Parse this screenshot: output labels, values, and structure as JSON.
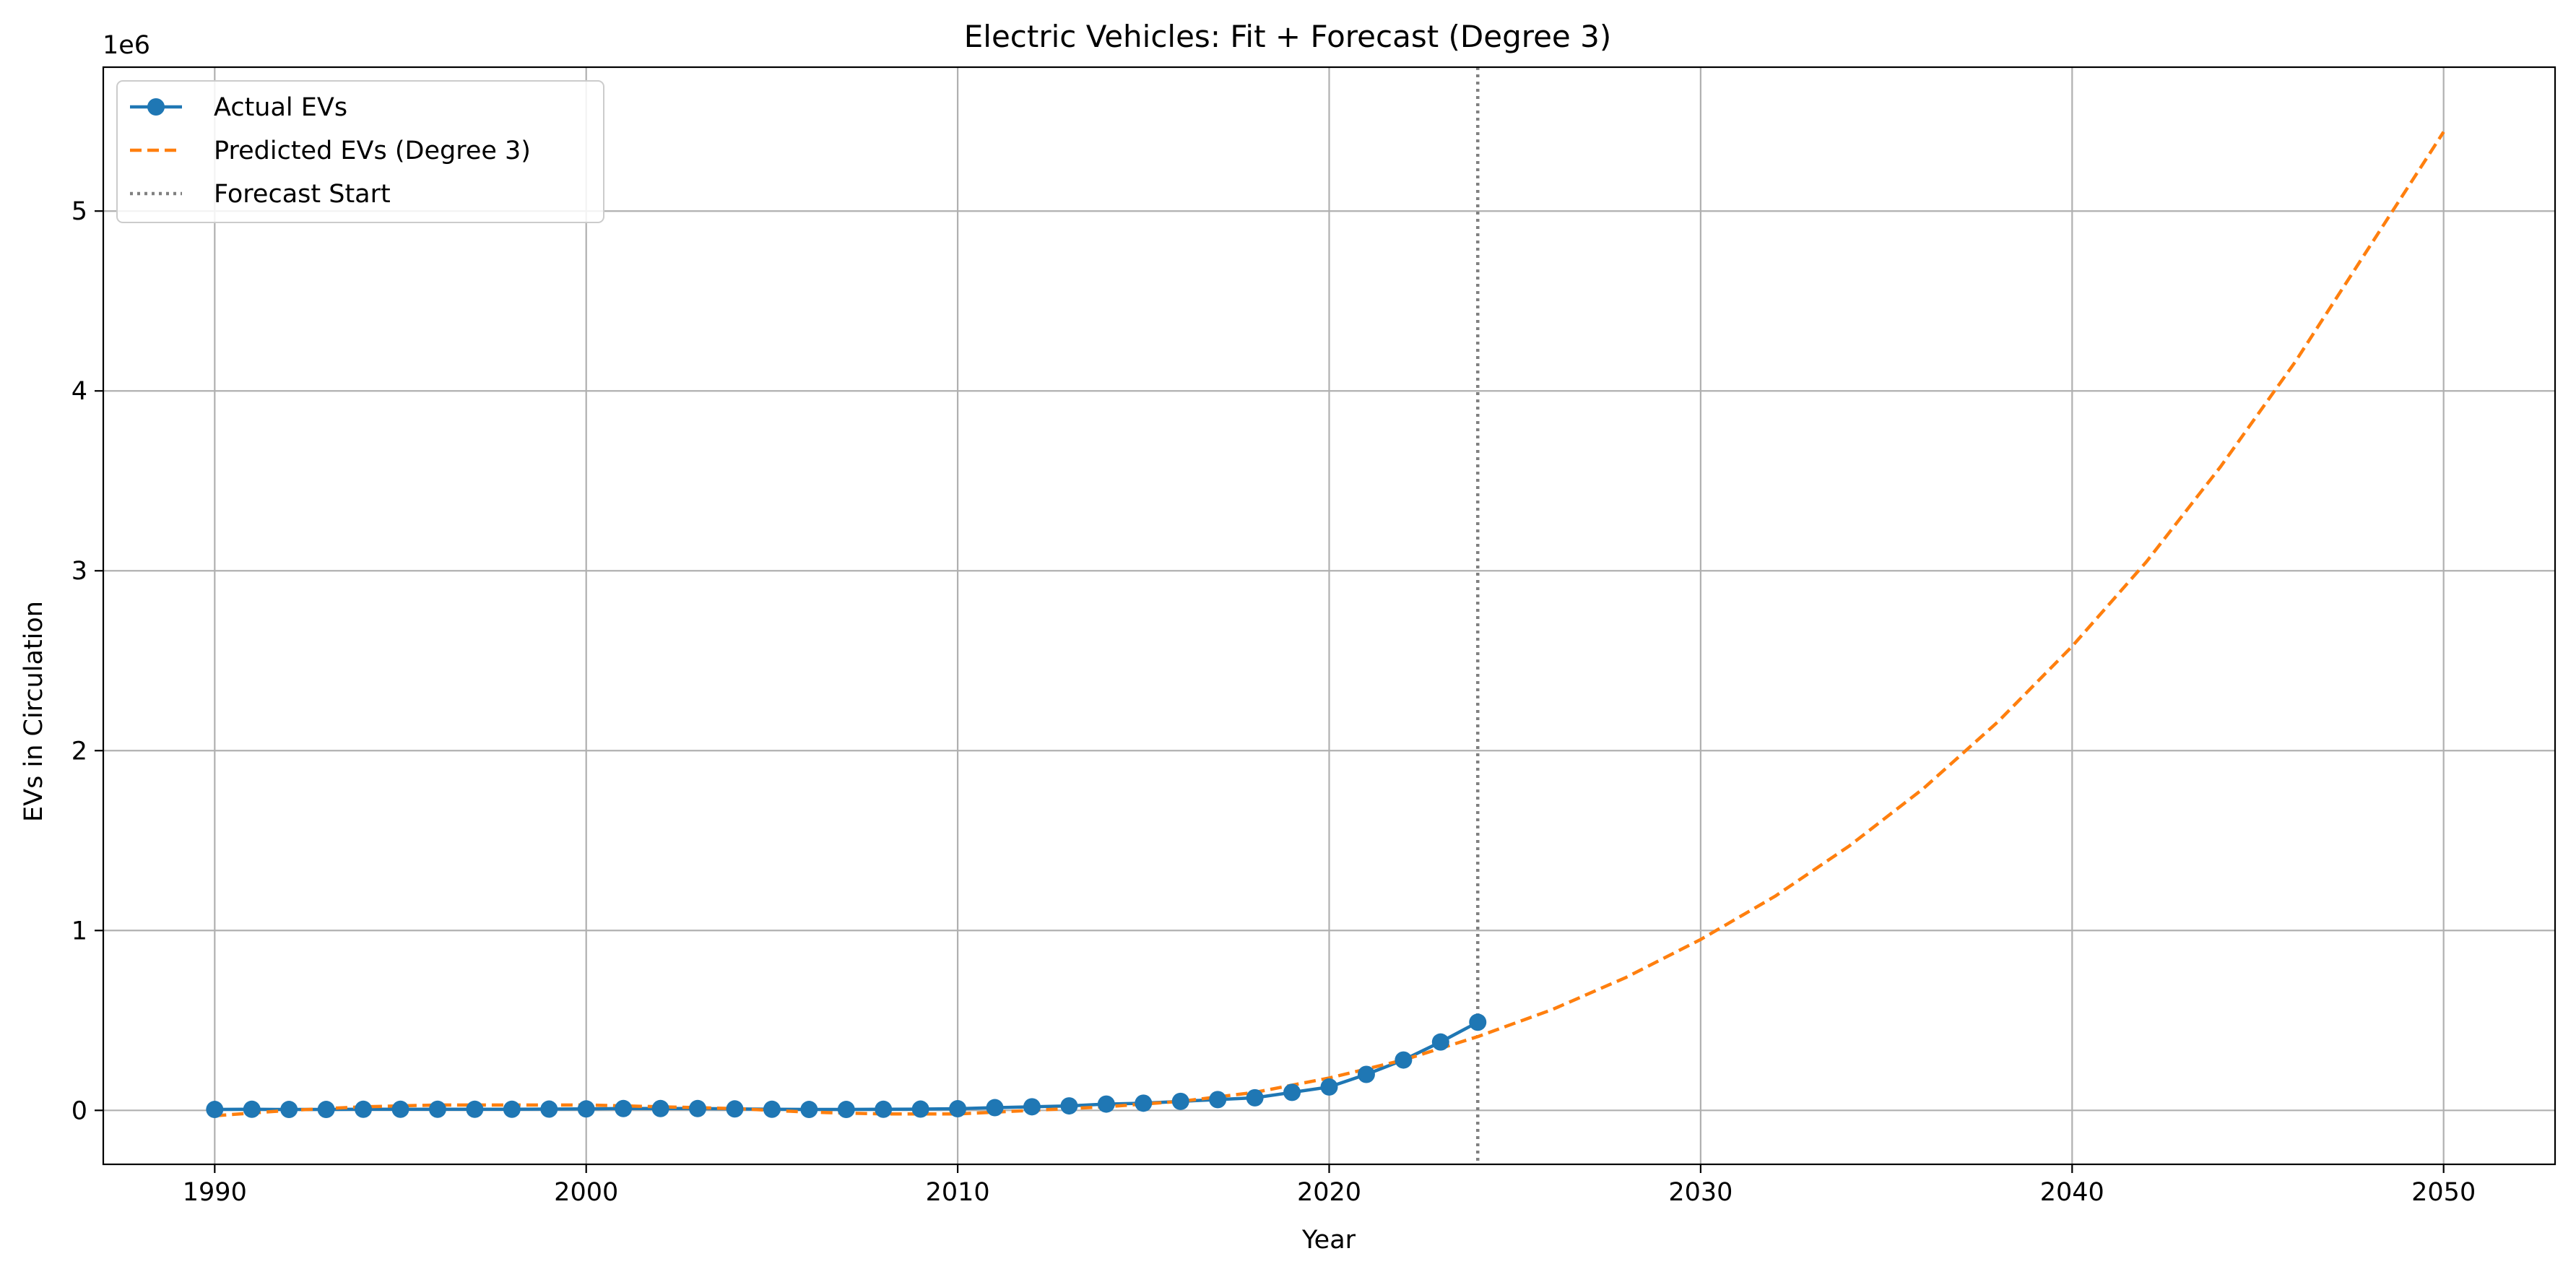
{
  "chart_data": {
    "type": "line",
    "title": "Electric Vehicles: Fit + Forecast (Degree 3)",
    "xlabel": "Year",
    "ylabel": "EVs in Circulation",
    "y_offset_text": "1e6",
    "xlim": [
      1987,
      2053
    ],
    "ylim": [
      -300000,
      5800000
    ],
    "x_ticks": [
      1990,
      2000,
      2010,
      2020,
      2030,
      2040,
      2050
    ],
    "y_ticks": [
      0,
      1000000,
      2000000,
      3000000,
      4000000,
      5000000
    ],
    "y_tick_labels": [
      "0",
      "1",
      "2",
      "3",
      "4",
      "5"
    ],
    "grid": true,
    "legend_position": "upper-left",
    "series": [
      {
        "name": "Actual EVs",
        "style": "solid-with-markers",
        "color": "#1f77b4",
        "x": [
          1990,
          1991,
          1992,
          1993,
          1994,
          1995,
          1996,
          1997,
          1998,
          1999,
          2000,
          2001,
          2002,
          2003,
          2004,
          2005,
          2006,
          2007,
          2008,
          2009,
          2010,
          2011,
          2012,
          2013,
          2014,
          2015,
          2016,
          2017,
          2018,
          2019,
          2020,
          2021,
          2022,
          2023,
          2024
        ],
        "y": [
          5000,
          6000,
          5000,
          5000,
          6000,
          6000,
          6000,
          6000,
          6000,
          7000,
          8000,
          10000,
          10000,
          10000,
          8000,
          6000,
          5000,
          5000,
          6000,
          7000,
          9000,
          15000,
          20000,
          25000,
          35000,
          40000,
          50000,
          60000,
          70000,
          100000,
          130000,
          200000,
          280000,
          380000,
          490000
        ]
      },
      {
        "name": "Predicted EVs (Degree 3)",
        "style": "dashed",
        "color": "#ff7f0e",
        "x": [
          1990,
          1992,
          1994,
          1996,
          1998,
          2000,
          2002,
          2004,
          2006,
          2008,
          2010,
          2012,
          2014,
          2016,
          2018,
          2020,
          2022,
          2024,
          2026,
          2028,
          2030,
          2032,
          2034,
          2036,
          2038,
          2040,
          2042,
          2044,
          2046,
          2048,
          2050
        ],
        "y": [
          -30000,
          0,
          20000,
          30000,
          30000,
          30000,
          20000,
          10000,
          -10000,
          -20000,
          -20000,
          0,
          20000,
          50000,
          100000,
          180000,
          280000,
          410000,
          560000,
          740000,
          950000,
          1190000,
          1470000,
          1790000,
          2160000,
          2580000,
          3050000,
          3580000,
          4160000,
          4800000,
          5440000
        ]
      },
      {
        "name": "Forecast Start",
        "style": "dotted-vertical",
        "color": "#808080",
        "x_value": 2024
      }
    ]
  }
}
